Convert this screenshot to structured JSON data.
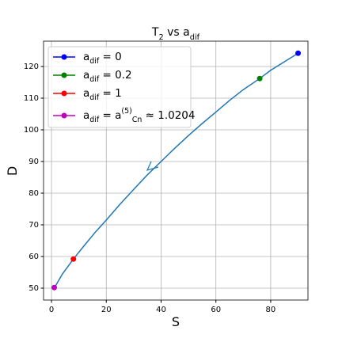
{
  "chart_data": {
    "type": "line",
    "title": "T_{2} vs a_{dif}",
    "x_label": "S",
    "y_label": "D",
    "xlim": [
      -2.9,
      93.6
    ],
    "ylim": [
      46.25,
      128
    ],
    "xticks": [
      0,
      20,
      40,
      60,
      80
    ],
    "yticks": [
      50,
      60,
      70,
      80,
      90,
      100,
      110,
      120
    ],
    "grid": true,
    "legend": "upper-left",
    "curve": {
      "color": "#1f77b4",
      "x": [
        1,
        4,
        8,
        12,
        16,
        20,
        25,
        30,
        35,
        40,
        45,
        50,
        55,
        60,
        65,
        70,
        76,
        80,
        85,
        90
      ],
      "values": [
        50,
        54.5,
        59.2,
        63.5,
        67.7,
        71.5,
        76.5,
        81.2,
        85.8,
        90,
        94.2,
        98.2,
        102,
        105.6,
        109.3,
        112.7,
        116.2,
        118.8,
        121.5,
        124.2
      ]
    },
    "series": [
      {
        "name": "a_{dif} = 0",
        "color": "#0000ff",
        "x": [
          90
        ],
        "values": [
          124.2
        ]
      },
      {
        "name": "a_{dif} = 0.2",
        "color": "#008000",
        "x": [
          76
        ],
        "values": [
          116.2
        ]
      },
      {
        "name": "a_{dif} = 1",
        "color": "#ff0000",
        "x": [
          8
        ],
        "values": [
          59.2
        ]
      },
      {
        "name": "a_{dif} = a^{(5)}_{Cn} ≈ 1.0204",
        "color": "#bf00bf",
        "x": [
          1
        ],
        "values": [
          50.2
        ]
      }
    ]
  }
}
